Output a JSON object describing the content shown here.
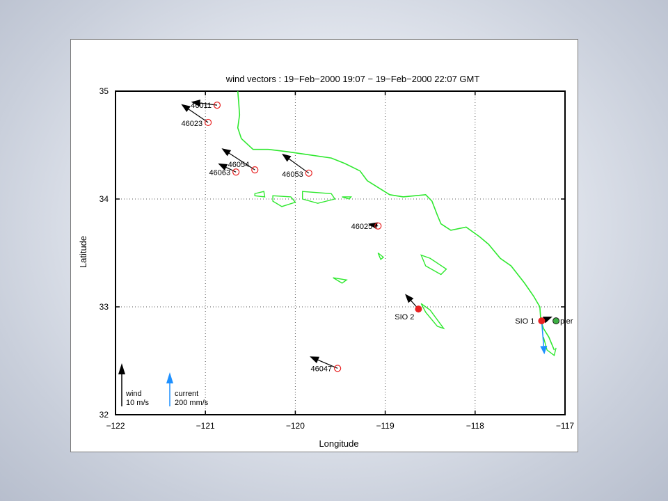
{
  "title": "wind vectors : 19−Feb−2000 19:07  − 19−Feb−2000 22:07 GMT",
  "xlabel": "Longitude",
  "ylabel": "Latitude",
  "x_ticks": [
    "−122",
    "−121",
    "−120",
    "−119",
    "−118",
    "−117"
  ],
  "y_ticks": [
    "32",
    "33",
    "34",
    "35"
  ],
  "legend": {
    "wind_label": "wind",
    "wind_scale": "10 m/s",
    "current_label": "current",
    "current_scale": "200 mm/s"
  },
  "colors": {
    "coastline": "#2ee82e",
    "station_marker": "#e82020",
    "wind_arrow": "#000000",
    "current_arrow": "#1e90ff",
    "grid": "#555555"
  },
  "chart_data": {
    "type": "scatter",
    "title": "wind vectors : 19−Feb−2000 19:07  − 19−Feb−2000 22:07 GMT",
    "xlabel": "Longitude",
    "ylabel": "Latitude",
    "xlim": [
      -122,
      -117
    ],
    "ylim": [
      32,
      35
    ],
    "grid": true,
    "stations": [
      {
        "label": "46011",
        "lon": -120.87,
        "lat": 34.87,
        "filled": false,
        "wind_end": [
          -121.16,
          34.9
        ]
      },
      {
        "label": "46023",
        "lon": -120.97,
        "lat": 34.71,
        "filled": false,
        "wind_end": [
          -121.27,
          34.88
        ]
      },
      {
        "label": "46054",
        "lon": -120.45,
        "lat": 34.27,
        "filled": false,
        "wind_end": [
          -120.82,
          34.47
        ]
      },
      {
        "label": "46063",
        "lon": -120.66,
        "lat": 34.25,
        "filled": false,
        "wind_end": [
          -120.86,
          34.33
        ]
      },
      {
        "label": "46053",
        "lon": -119.85,
        "lat": 34.24,
        "filled": false,
        "wind_end": [
          -120.15,
          34.42
        ]
      },
      {
        "label": "46025",
        "lon": -119.08,
        "lat": 33.75,
        "filled": false,
        "wind_end": [
          -119.19,
          33.77
        ]
      },
      {
        "label": "SIO 2",
        "lon": -118.63,
        "lat": 32.98,
        "filled": true,
        "wind_end": [
          -118.78,
          33.12
        ]
      },
      {
        "label": "46047",
        "lon": -119.53,
        "lat": 32.43,
        "filled": false,
        "wind_end": [
          -119.84,
          32.54
        ]
      },
      {
        "label": "SIO 1",
        "lon": -117.26,
        "lat": 32.87,
        "filled": true,
        "wind_end": [
          -117.14,
          32.91
        ]
      },
      {
        "label": "pier",
        "lon": -117.1,
        "lat": 32.87,
        "filled": true,
        "wind_end": null
      }
    ],
    "current_vectors": [
      {
        "station": "SIO 1",
        "lon": -117.26,
        "lat": 32.87,
        "end": [
          -117.23,
          32.56
        ]
      }
    ]
  }
}
